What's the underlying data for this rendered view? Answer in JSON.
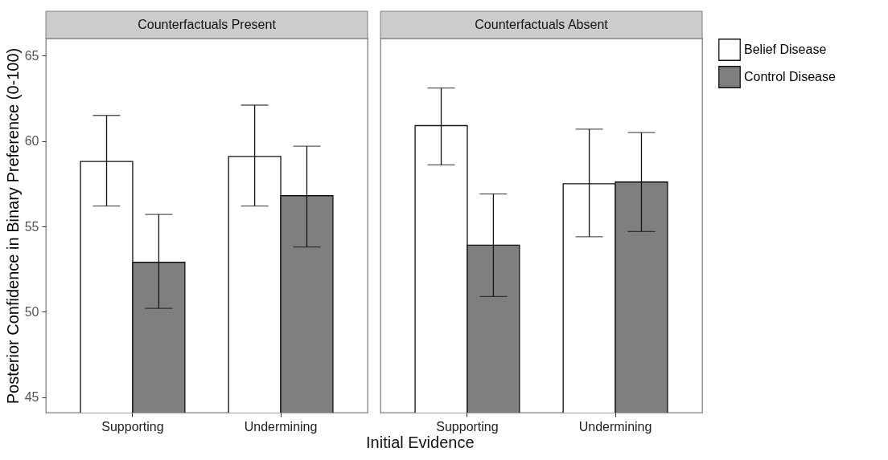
{
  "chart_data": [
    {
      "type": "bar",
      "title": "Counterfactuals Present",
      "xlabel": "Initial Evidence",
      "ylabel": "Posterior Confidence in Binary Preference (0-100)",
      "categories": [
        "Supporting",
        "Undermining"
      ],
      "ylim": [
        44.1,
        66
      ],
      "yticks": [
        45,
        50,
        55,
        60,
        65
      ],
      "grid": false,
      "legend": "right",
      "series": [
        {
          "name": "Belief Disease",
          "color": "#ffffff",
          "values": [
            58.8,
            59.1
          ],
          "errors": [
            [
              56.2,
              61.5
            ],
            [
              56.2,
              62.1
            ]
          ]
        },
        {
          "name": "Control Disease",
          "color": "#7f7f7f",
          "values": [
            52.9,
            56.8
          ],
          "errors": [
            [
              50.2,
              55.7
            ],
            [
              53.8,
              59.7
            ]
          ]
        }
      ]
    },
    {
      "type": "bar",
      "title": "Counterfactuals Absent",
      "categories": [
        "Supporting",
        "Undermining"
      ],
      "ylim": [
        44.1,
        66
      ],
      "yticks": [
        45,
        50,
        55,
        60,
        65
      ],
      "grid": false,
      "legend": "right",
      "tick_labels": "x",
      "series": [
        {
          "name": "Belief Disease",
          "color": "#ffffff",
          "values": [
            60.9,
            57.5
          ],
          "errors": [
            [
              58.6,
              63.1
            ],
            [
              54.4,
              60.7
            ]
          ]
        },
        {
          "name": "Control Disease",
          "color": "#7f7f7f",
          "values": [
            53.9,
            57.6
          ],
          "errors": [
            [
              50.9,
              56.9
            ],
            [
              54.7,
              60.5
            ]
          ]
        }
      ]
    }
  ]
}
